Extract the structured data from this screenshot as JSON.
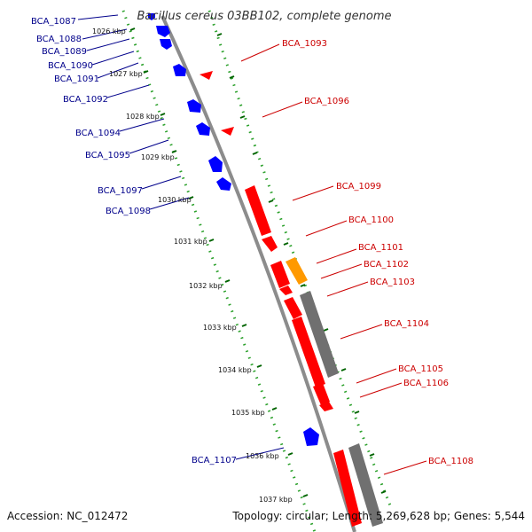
{
  "title": "Bacillus cereus 03BB102, complete genome",
  "footer": {
    "accession": "Accession: NC_012472",
    "summary": "Topology: circular; Length: 5,269,628 bp; Genes: 5,544"
  },
  "colors": {
    "backbone": "#8c8c8c",
    "forward_gene": "#ff0000",
    "reverse_gene": "#0000ff",
    "orange_feature": "#ff9900",
    "gray_feature": "#707070",
    "tick_line": "#2aa02a",
    "tick_major": "#006400",
    "forward_label": "#cc0000",
    "reverse_label": "#00008b"
  },
  "ruler": [
    "1026 kbp",
    "1027 kbp",
    "1028 kbp",
    "1029 kbp",
    "1030 kbp",
    "1031 kbp",
    "1032 kbp",
    "1033 kbp",
    "1034 kbp",
    "1035 kbp",
    "1036 kbp",
    "1037 kbp"
  ],
  "reverse_labels": [
    "BCA_1087",
    "BCA_1088",
    "BCA_1089",
    "BCA_1090",
    "BCA_1091",
    "BCA_1092",
    "BCA_1094",
    "BCA_1095",
    "BCA_1097",
    "BCA_1098",
    "BCA_1107"
  ],
  "forward_labels": [
    "BCA_1093",
    "BCA_1096",
    "BCA_1099",
    "BCA_1100",
    "BCA_1101",
    "BCA_1102",
    "BCA_1103",
    "BCA_1104",
    "BCA_1105",
    "BCA_1106",
    "BCA_1108"
  ]
}
